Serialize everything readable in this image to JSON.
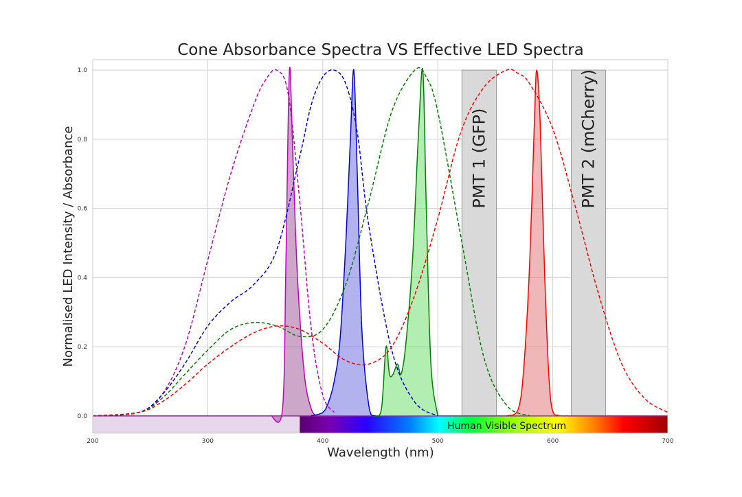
{
  "chart_data": {
    "type": "line",
    "title": "Cone Absorbance Spectra VS Effective LED Spectra",
    "xlabel": "Wavelength (nm)",
    "ylabel": "Normalised LED Intensity / Absorbance",
    "xlim": [
      200,
      700
    ],
    "ylim": [
      -0.05,
      1.03
    ],
    "xticks": [
      "200",
      "300",
      "400",
      "500",
      "600",
      "700"
    ],
    "yticks": [
      "0.0",
      "0.2",
      "0.4",
      "0.6",
      "0.8",
      "1.0"
    ],
    "grid": true,
    "spectrum_label": "Human Visible Spectrum",
    "pmt_bands": [
      {
        "label": "PMT  1 (GFP)",
        "x_start": 521,
        "x_end": 551,
        "color": "#d9d9d9"
      },
      {
        "label": "PMT  2 (mCherry)",
        "x_start": 616,
        "x_end": 646,
        "color": "#d9d9d9"
      }
    ],
    "cone_absorbance_series": [
      {
        "color": "#c000c0",
        "peak_nm": 360,
        "x": [
          200,
          240,
          260,
          280,
          300,
          320,
          340,
          350,
          360,
          370,
          380,
          390,
          400,
          410
        ],
        "values": [
          0.0,
          0.01,
          0.06,
          0.2,
          0.45,
          0.7,
          0.9,
          0.97,
          1.0,
          0.93,
          0.62,
          0.25,
          0.06,
          0.01
        ]
      },
      {
        "color": "#0000e0",
        "peak_nm": 410,
        "x": [
          200,
          240,
          260,
          280,
          300,
          320,
          340,
          360,
          380,
          390,
          400,
          410,
          420,
          430,
          440,
          460,
          480,
          500
        ],
        "values": [
          0.0,
          0.01,
          0.06,
          0.15,
          0.26,
          0.33,
          0.38,
          0.48,
          0.75,
          0.9,
          0.98,
          1.0,
          0.96,
          0.82,
          0.55,
          0.19,
          0.04,
          0.0
        ]
      },
      {
        "color": "#008000",
        "peak_nm": 483,
        "x": [
          200,
          240,
          260,
          280,
          300,
          320,
          340,
          360,
          380,
          400,
          420,
          440,
          460,
          480,
          490,
          500,
          520,
          540,
          560,
          580
        ],
        "values": [
          0.0,
          0.01,
          0.05,
          0.12,
          0.19,
          0.25,
          0.27,
          0.26,
          0.23,
          0.25,
          0.38,
          0.62,
          0.88,
          1.0,
          0.98,
          0.88,
          0.52,
          0.17,
          0.03,
          0.0
        ]
      },
      {
        "color": "#ff0000",
        "peak_nm": 565,
        "x": [
          200,
          240,
          260,
          280,
          300,
          320,
          340,
          360,
          380,
          400,
          420,
          440,
          460,
          480,
          500,
          520,
          540,
          560,
          570,
          580,
          600,
          620,
          640,
          660,
          680,
          700
        ],
        "values": [
          0.0,
          0.01,
          0.04,
          0.09,
          0.15,
          0.2,
          0.24,
          0.26,
          0.25,
          0.21,
          0.16,
          0.15,
          0.2,
          0.35,
          0.57,
          0.82,
          0.95,
          1.0,
          0.99,
          0.96,
          0.83,
          0.6,
          0.35,
          0.15,
          0.05,
          0.01
        ]
      }
    ],
    "led_series": [
      {
        "color": "#c000c0",
        "fill": "#9b4f96",
        "x": [
          355,
          365,
          368,
          371,
          374,
          378,
          384,
          390,
          395
        ],
        "values": [
          0.0,
          0.02,
          0.45,
          1.0,
          0.75,
          0.4,
          0.12,
          0.02,
          0.0
        ]
      },
      {
        "color": "#0000e0",
        "fill": "#6666e0",
        "x": [
          390,
          400,
          405,
          410,
          415,
          420,
          424,
          427,
          430,
          434,
          440,
          445
        ],
        "values": [
          0.0,
          0.01,
          0.04,
          0.1,
          0.22,
          0.5,
          0.8,
          1.0,
          0.7,
          0.25,
          0.03,
          0.0
        ]
      },
      {
        "color": "#008000",
        "fill": "#66dd66",
        "x": [
          445,
          451,
          455,
          458,
          461,
          465,
          468,
          472,
          478,
          483,
          487,
          490,
          494,
          500
        ],
        "values": [
          0.0,
          0.02,
          0.2,
          0.12,
          0.12,
          0.15,
          0.12,
          0.2,
          0.45,
          0.8,
          1.0,
          0.6,
          0.15,
          0.0
        ]
      },
      {
        "color": "#ff0000",
        "fill": "#e07070",
        "x": [
          560,
          570,
          575,
          580,
          584,
          586,
          589,
          593,
          598,
          605
        ],
        "values": [
          0.0,
          0.02,
          0.15,
          0.45,
          0.85,
          1.0,
          0.85,
          0.4,
          0.05,
          0.0
        ]
      }
    ]
  }
}
